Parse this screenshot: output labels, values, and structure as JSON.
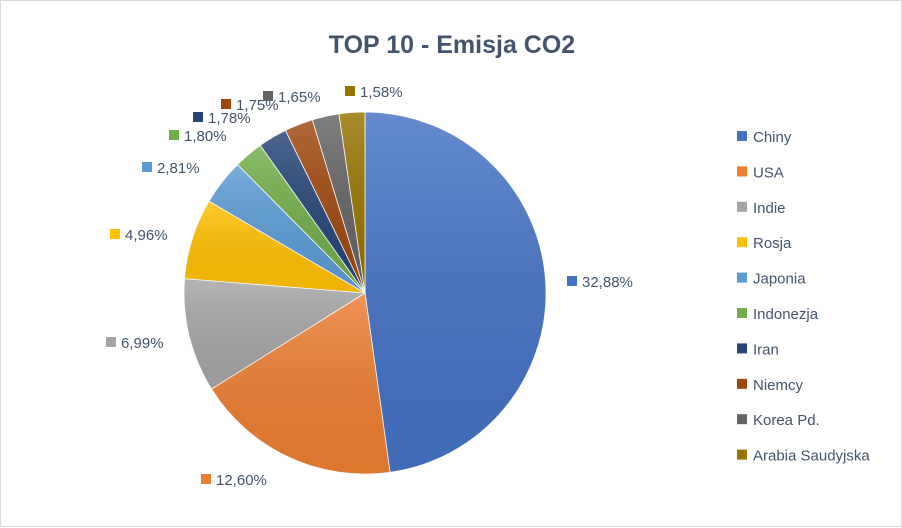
{
  "chart_data": {
    "type": "pie",
    "title": "TOP 10 - Emisja CO2",
    "categories": [
      "Chiny",
      "USA",
      "Indie",
      "Rosja",
      "Japonia",
      "Indonezja",
      "Iran",
      "Niemcy",
      "Korea Pd.",
      "Arabia Saudyjska"
    ],
    "values": [
      32.88,
      12.6,
      6.99,
      4.96,
      2.81,
      1.8,
      1.78,
      1.75,
      1.65,
      1.58
    ],
    "data_labels": [
      "32,88%",
      "12,60%",
      "6,99%",
      "4,96%",
      "2,81%",
      "1,80%",
      "1,78%",
      "1,75%",
      "1,65%",
      "1,58%"
    ],
    "colors": [
      "#4472C4",
      "#ED7D31",
      "#A5A5A5",
      "#FFC000",
      "#5B9BD5",
      "#70AD47",
      "#264478",
      "#9E480E",
      "#636363",
      "#997300"
    ],
    "legend_position": "right"
  }
}
